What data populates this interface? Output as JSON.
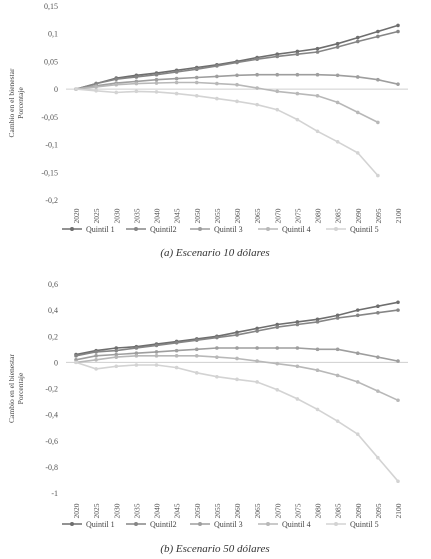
{
  "chart_data": [
    {
      "type": "line",
      "ylabel": "Cambio en el bienestar\nPorcentaje",
      "ylim": [
        -0.2,
        0.15
      ],
      "yticks": [
        "0,15",
        "0,1",
        "0,05",
        "0",
        "-0,05",
        "-0,1",
        "-0,15",
        "-0,2"
      ],
      "ytick_values": [
        0.15,
        0.1,
        0.05,
        0,
        -0.05,
        -0.1,
        -0.15,
        -0.2
      ],
      "x": [
        "2020",
        "2025",
        "2030",
        "2035",
        "2040",
        "2045",
        "2050",
        "2055",
        "2060",
        "2065",
        "2070",
        "2075",
        "2080",
        "2085",
        "2090",
        "2095",
        "2100"
      ],
      "series": [
        {
          "name": "Quintil 1",
          "color": "#6e6e6e",
          "values": [
            0,
            0.01,
            0.02,
            0.025,
            0.029,
            0.034,
            0.039,
            0.044,
            0.05,
            0.057,
            0.063,
            0.068,
            0.073,
            0.082,
            0.093,
            0.104,
            0.115
          ]
        },
        {
          "name": "Quintil2",
          "color": "#858585",
          "values": [
            0,
            0.01,
            0.018,
            0.022,
            0.026,
            0.031,
            0.036,
            0.042,
            0.048,
            0.054,
            0.059,
            0.063,
            0.067,
            0.076,
            0.086,
            0.095,
            0.104
          ]
        },
        {
          "name": "Quintil 3",
          "color": "#9e9e9e",
          "values": [
            0,
            0.006,
            0.011,
            0.014,
            0.017,
            0.019,
            0.021,
            0.023,
            0.025,
            0.026,
            0.026,
            0.026,
            0.026,
            0.025,
            0.022,
            0.017,
            0.009
          ]
        },
        {
          "name": "Quintil 4",
          "color": "#b8b8b8",
          "values": [
            0,
            0.004,
            0.008,
            0.01,
            0.011,
            0.012,
            0.012,
            0.01,
            0.008,
            0.002,
            -0.004,
            -0.008,
            -0.012,
            -0.024,
            -0.042,
            -0.06,
            null
          ]
        },
        {
          "name": "Quintil 5",
          "color": "#d3d3d3",
          "values": [
            0,
            -0.003,
            -0.006,
            -0.004,
            -0.005,
            -0.008,
            -0.012,
            -0.017,
            -0.022,
            -0.028,
            -0.037,
            -0.055,
            -0.076,
            -0.095,
            -0.115,
            -0.156,
            null
          ]
        }
      ],
      "caption": "(a) Escenario 10 dólares"
    },
    {
      "type": "line",
      "ylabel": "Cambio en el bienestar\nPorcentaje",
      "ylim": [
        -1,
        0.6
      ],
      "yticks": [
        "0,6",
        "0,4",
        "0,2",
        "0",
        "-0,2",
        "-0,4",
        "-0,6",
        "-0,8",
        "-1"
      ],
      "ytick_values": [
        0.6,
        0.4,
        0.2,
        0,
        -0.2,
        -0.4,
        -0.6,
        -0.8,
        -1
      ],
      "x": [
        "2020",
        "2025",
        "2030",
        "2035",
        "2040",
        "2045",
        "2050",
        "2055",
        "2060",
        "2065",
        "2070",
        "2075",
        "2080",
        "2085",
        "2090",
        "2095",
        "2100"
      ],
      "series": [
        {
          "name": "Quintil 1",
          "color": "#6e6e6e",
          "values": [
            0.06,
            0.09,
            0.11,
            0.12,
            0.14,
            0.16,
            0.18,
            0.2,
            0.23,
            0.26,
            0.29,
            0.31,
            0.33,
            0.36,
            0.4,
            0.43,
            0.46
          ]
        },
        {
          "name": "Quintil2",
          "color": "#858585",
          "values": [
            0.05,
            0.08,
            0.09,
            0.11,
            0.13,
            0.15,
            0.17,
            0.19,
            0.21,
            0.24,
            0.27,
            0.29,
            0.31,
            0.34,
            0.36,
            0.38,
            0.4
          ]
        },
        {
          "name": "Quintil 3",
          "color": "#9e9e9e",
          "values": [
            0.02,
            0.05,
            0.06,
            0.07,
            0.08,
            0.09,
            0.1,
            0.11,
            0.11,
            0.11,
            0.11,
            0.11,
            0.1,
            0.1,
            0.07,
            0.04,
            0.01
          ]
        },
        {
          "name": "Quintil 4",
          "color": "#b8b8b8",
          "values": [
            0.0,
            0.02,
            0.04,
            0.05,
            0.05,
            0.05,
            0.05,
            0.04,
            0.03,
            0.01,
            -0.01,
            -0.03,
            -0.06,
            -0.1,
            -0.15,
            -0.22,
            -0.29
          ]
        },
        {
          "name": "Quintil 5",
          "color": "#d3d3d3",
          "values": [
            0.0,
            -0.05,
            -0.03,
            -0.02,
            -0.02,
            -0.04,
            -0.08,
            -0.11,
            -0.13,
            -0.15,
            -0.21,
            -0.28,
            -0.36,
            -0.45,
            -0.55,
            -0.73,
            -0.91
          ]
        }
      ],
      "caption": "(b) Escenario 50 dólares"
    }
  ]
}
